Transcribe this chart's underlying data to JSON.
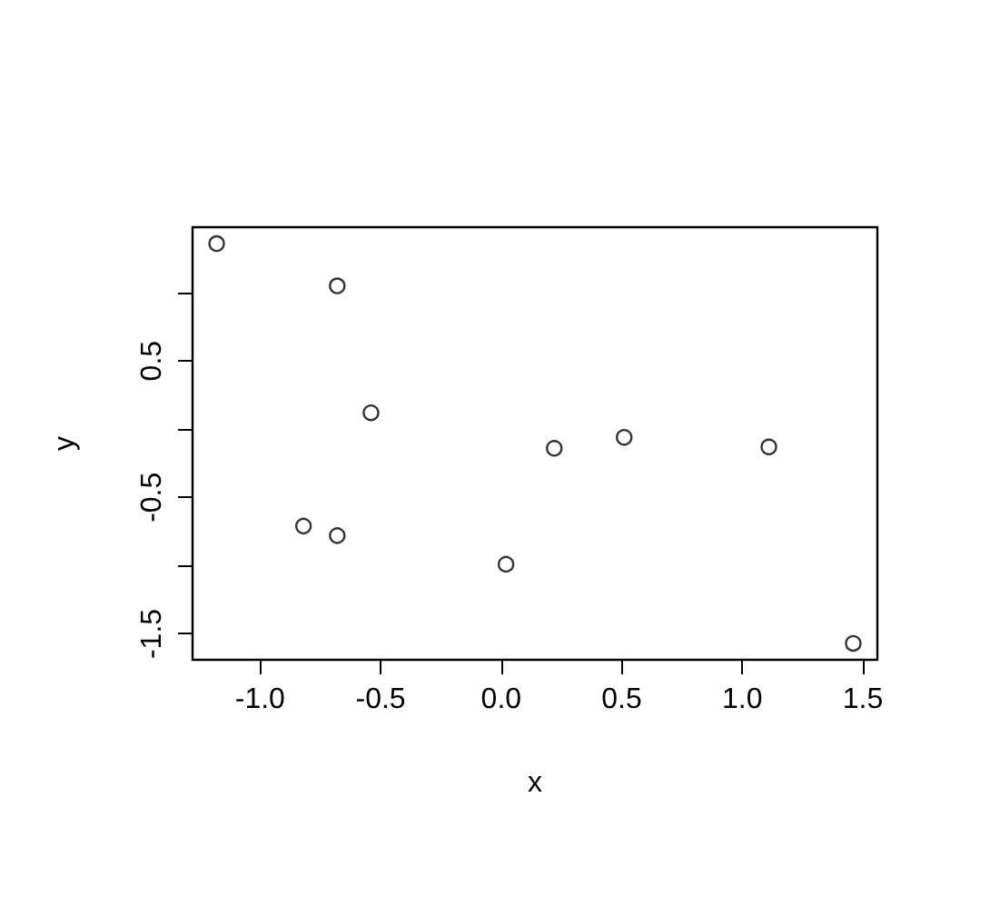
{
  "chart_data": {
    "type": "scatter",
    "xlabel": "x",
    "ylabel": "y",
    "marker": "circle",
    "grid": false,
    "x": [
      -1.18,
      -0.68,
      -0.54,
      -0.82,
      -0.68,
      0.02,
      0.22,
      0.51,
      1.11,
      1.46
    ],
    "series": [
      {
        "color": "#000000",
        "values": [
          1.36,
          1.05,
          0.12,
          -0.71,
          -0.78,
          -0.99,
          -0.14,
          -0.06,
          -0.13,
          -1.57
        ]
      }
    ],
    "xlim": [
      -1.28,
      1.56
    ],
    "ylim": [
      -1.69,
      1.48
    ],
    "xticks": [
      {
        "value": -1.0,
        "label": "-1.0"
      },
      -0.5,
      {
        "value": 0.0,
        "label": "0.0"
      },
      0.5,
      {
        "value": 1.0,
        "label": "1.0"
      },
      1.5
    ],
    "yticks": [
      -1.5,
      {
        "value": -1.0,
        "label": null
      },
      -0.5,
      {
        "value": 0.0,
        "label": null
      },
      0.5,
      {
        "value": 1.0,
        "label": null
      }
    ]
  }
}
